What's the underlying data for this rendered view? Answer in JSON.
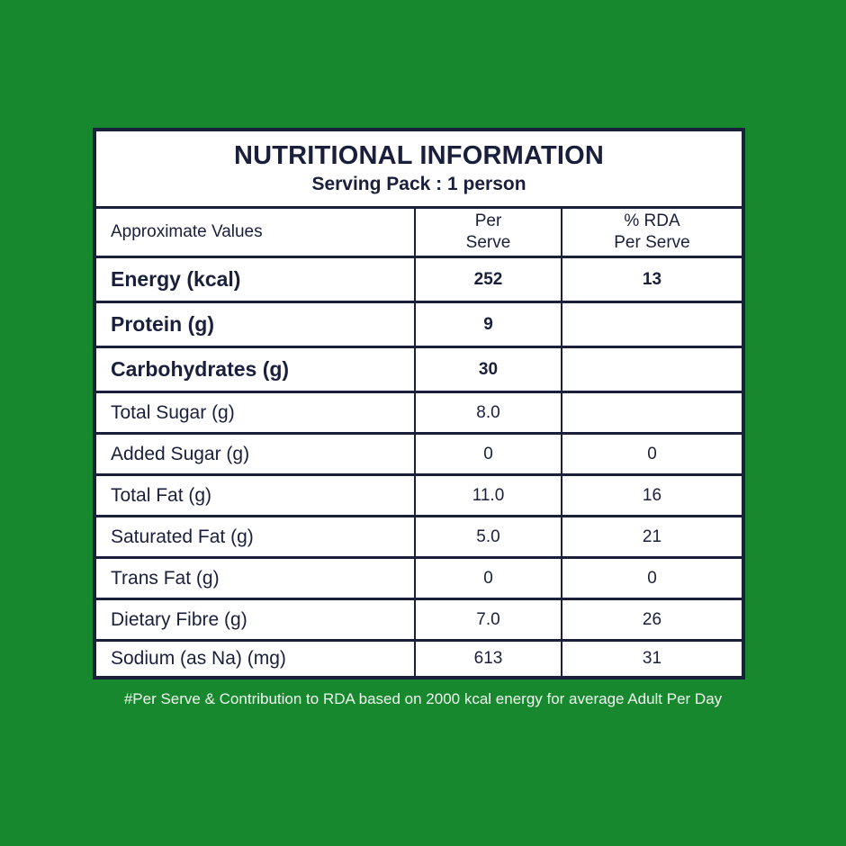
{
  "colors": {
    "background": "#17882d",
    "card_background": "#ffffff",
    "ink": "#1a1f3c",
    "footer_text": "#f2f8f2"
  },
  "title": "NUTRITIONAL INFORMATION",
  "subtitle": "Serving Pack : 1 person",
  "table": {
    "headers": {
      "approximate_values": "Approximate Values",
      "per_serve_line1": "Per",
      "per_serve_line2": "Serve",
      "rda_line1": "% RDA",
      "rda_line2": "Per Serve"
    },
    "rows": [
      {
        "label": "Energy (kcal)",
        "per_serve": "252",
        "rda": "13"
      },
      {
        "label": "Protein (g)",
        "per_serve": "9",
        "rda": ""
      },
      {
        "label": "Carbohydrates (g)",
        "per_serve": "30",
        "rda": ""
      },
      {
        "label": "Total Sugar (g)",
        "per_serve": "8.0",
        "rda": ""
      },
      {
        "label": "Added Sugar (g)",
        "per_serve": "0",
        "rda": "0"
      },
      {
        "label": "Total Fat (g)",
        "per_serve": "11.0",
        "rda": "16"
      },
      {
        "label": "Saturated Fat (g)",
        "per_serve": "5.0",
        "rda": "21"
      },
      {
        "label": "Trans Fat (g)",
        "per_serve": "0",
        "rda": "0"
      },
      {
        "label": "Dietary Fibre (g)",
        "per_serve": "7.0",
        "rda": "26"
      },
      {
        "label": "Sodium (as Na) (mg)",
        "per_serve": "613",
        "rda": "31"
      }
    ]
  },
  "footer": {
    "note": "#Per Serve & Contribution to RDA based on 2000 kcal energy for average Adult Per Day"
  }
}
